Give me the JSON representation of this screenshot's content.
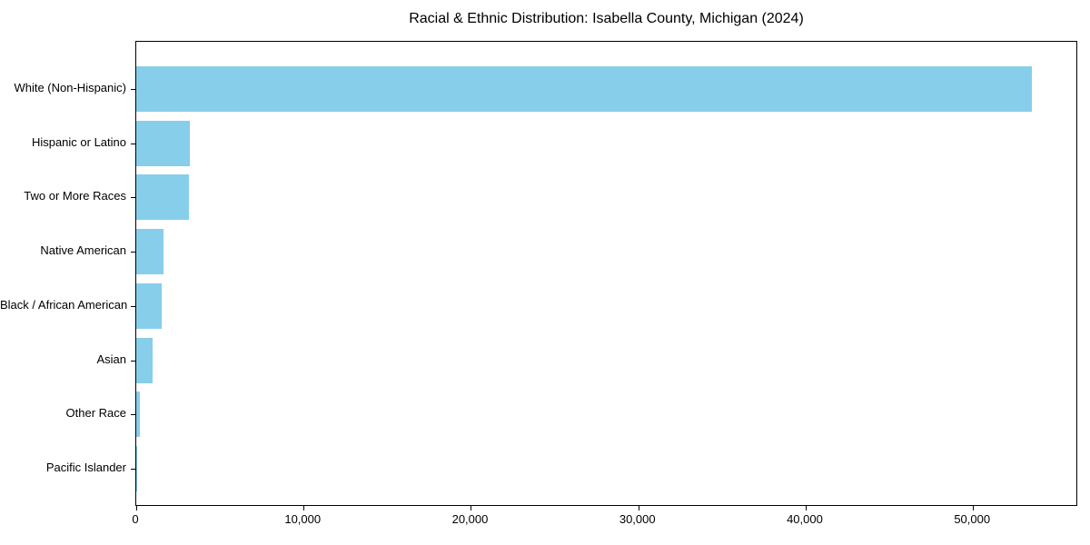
{
  "chart_data": {
    "type": "bar",
    "orientation": "horizontal",
    "title": "Racial & Ethnic Distribution: Isabella County, Michigan (2024)",
    "xlabel": "",
    "ylabel": "",
    "categories": [
      "White (Non-Hispanic)",
      "Hispanic or Latino",
      "Two or More Races",
      "Native American",
      "Black / African American",
      "Asian",
      "Other Race",
      "Pacific Islander"
    ],
    "values": [
      53500,
      3200,
      3150,
      1650,
      1500,
      1000,
      230,
      20
    ],
    "xlim": [
      0,
      56175
    ],
    "x_ticks": [
      0,
      10000,
      20000,
      30000,
      40000,
      50000
    ],
    "x_tick_labels": [
      "0",
      "10,000",
      "20,000",
      "30,000",
      "40,000",
      "50,000"
    ],
    "bar_color": "#87CEEB",
    "axis_color": "#000000",
    "text_color": "#000000",
    "background_color": "#ffffff",
    "grid": false,
    "legend": null
  }
}
